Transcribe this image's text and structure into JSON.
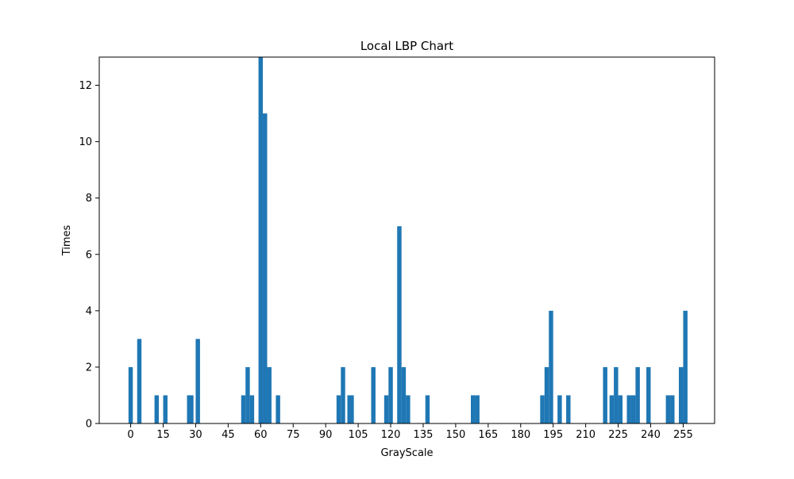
{
  "chart_data": {
    "type": "bar",
    "title": "Local LBP Chart",
    "xlabel": "GrayScale",
    "ylabel": "Times",
    "xlim": [
      -14.5,
      269.5
    ],
    "ylim": [
      0,
      13
    ],
    "xticks": [
      0,
      15,
      30,
      45,
      60,
      75,
      90,
      105,
      120,
      135,
      150,
      165,
      180,
      195,
      210,
      225,
      240,
      255
    ],
    "yticks": [
      0,
      2,
      4,
      6,
      8,
      10,
      12
    ],
    "grid": false,
    "legend": "none",
    "bar_color": "#1f77b4",
    "bar_width": 2,
    "x": [
      0,
      4,
      12,
      16,
      27,
      28,
      31,
      52,
      54,
      56,
      60,
      62,
      64,
      68,
      96,
      98,
      101,
      102,
      112,
      118,
      120,
      124,
      126,
      128,
      137,
      158,
      160,
      190,
      192,
      194,
      198,
      202,
      219,
      222,
      224,
      226,
      230,
      232,
      234,
      239,
      248,
      250,
      254,
      256
    ],
    "values": [
      2,
      3,
      1,
      1,
      1,
      1,
      3,
      1,
      2,
      1,
      13,
      11,
      2,
      1,
      1,
      2,
      1,
      1,
      2,
      1,
      2,
      7,
      2,
      1,
      1,
      1,
      1,
      1,
      2,
      4,
      1,
      1,
      2,
      1,
      2,
      1,
      1,
      1,
      2,
      2,
      1,
      1,
      2,
      4
    ]
  }
}
